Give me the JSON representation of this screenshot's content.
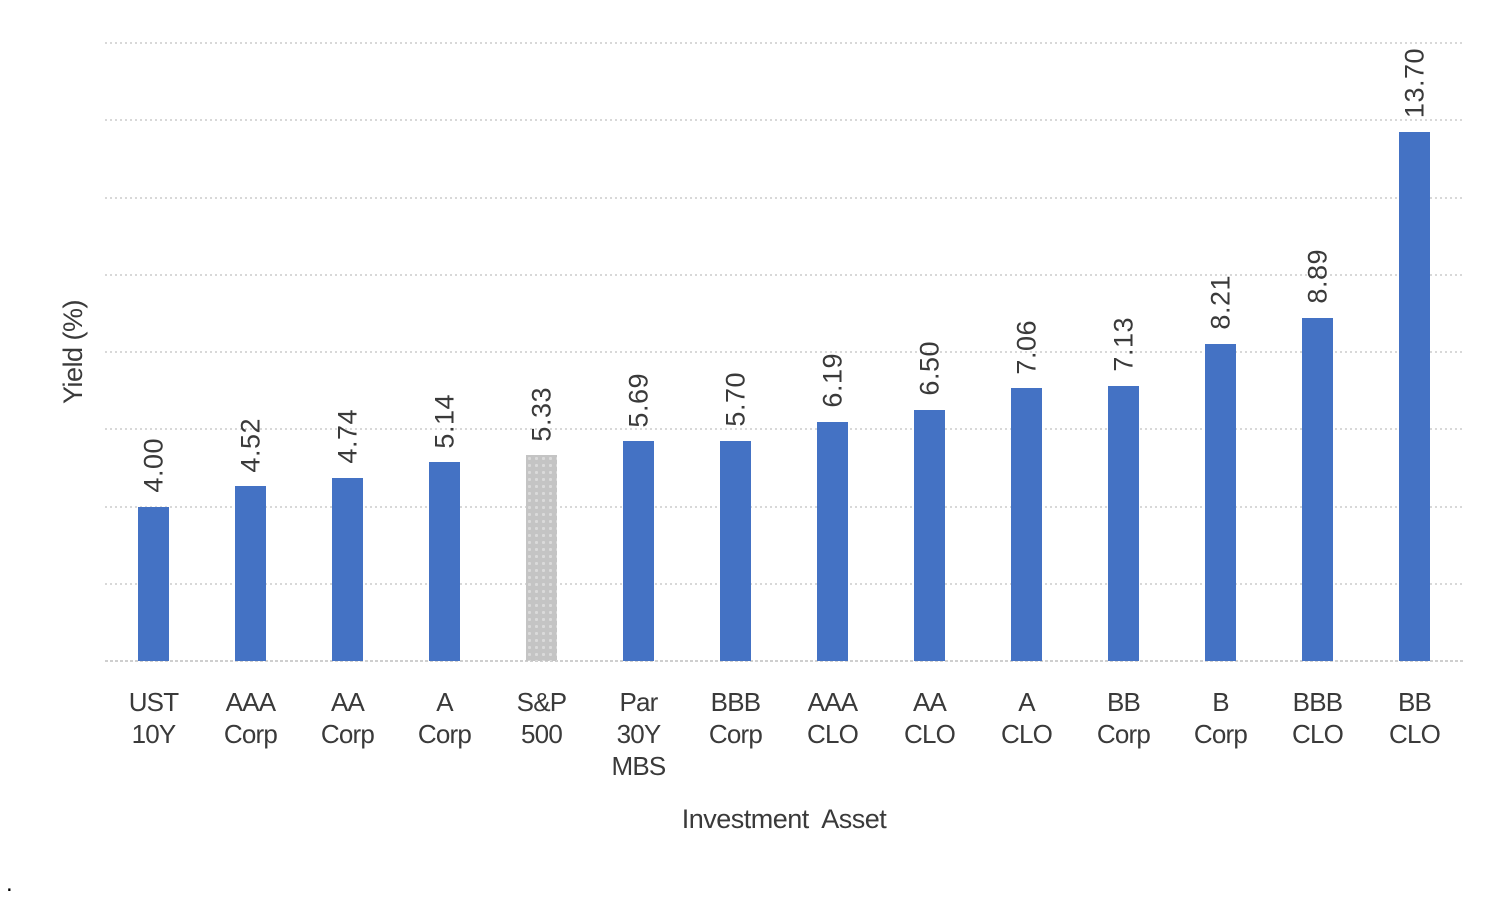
{
  "chart_data": {
    "type": "bar",
    "title": "",
    "categories": [
      "UST 10Y",
      "AAA Corp",
      "AA Corp",
      "A Corp",
      "S&P 500",
      "Par 30Y MBS",
      "BBB Corp",
      "AAA CLO",
      "AA CLO",
      "A CLO",
      "BB Corp",
      "B Corp",
      "BBB CLO",
      "BB CLO"
    ],
    "values": [
      4.0,
      4.52,
      4.74,
      5.14,
      5.33,
      5.69,
      5.7,
      6.19,
      6.5,
      7.06,
      7.13,
      8.21,
      8.89,
      13.7
    ],
    "value_labels": [
      "4.00",
      "4.52",
      "4.74",
      "5.14",
      "5.33",
      "5.69",
      "5.70",
      "6.19",
      "6.50",
      "7.06",
      "7.13",
      "8.21",
      "8.89",
      "13.70"
    ],
    "xlabel": "Investment Asset",
    "ylabel": "Yield (%)",
    "ylim": [
      0,
      16
    ],
    "grid_step": 2,
    "grid": true,
    "legend": false,
    "value_label_rotation": -90,
    "bar_color_default": "#4472C4",
    "bar_color_highlight": "#C4C4C4",
    "bar_highlight_dot_color": "#DADADA",
    "gridline_color": "#D8D8D8",
    "highlight_index": 4,
    "highlight_category": "S&P 500"
  },
  "misc": {
    "corner_dot": "."
  }
}
